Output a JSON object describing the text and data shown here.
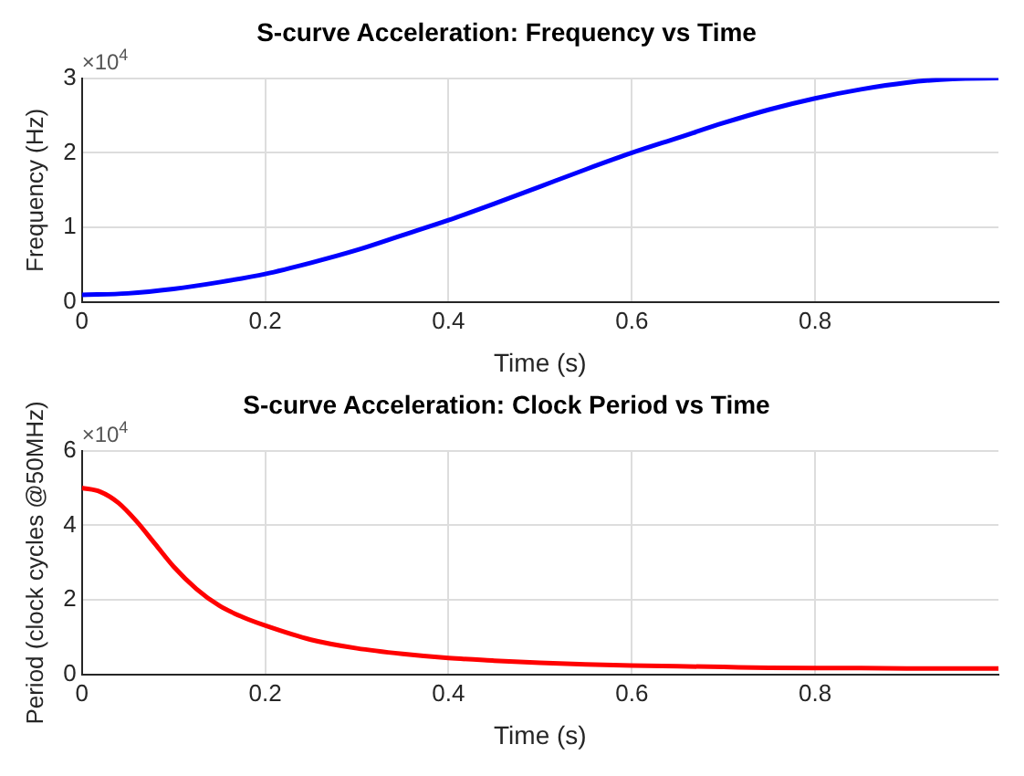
{
  "chart_data": [
    {
      "type": "line",
      "title": "S-curve Acceleration: Frequency vs Time",
      "xlabel": "Time (s)",
      "ylabel": "Frequency (Hz)",
      "annotations": [
        "×10$^{4}$"
      ],
      "x": [
        0,
        0.05,
        0.1,
        0.15,
        0.2,
        0.25,
        0.3,
        0.35,
        0.4,
        0.45,
        0.5,
        0.55,
        0.6,
        0.65,
        0.7,
        0.75,
        0.8,
        0.85,
        0.9,
        0.95,
        1
      ],
      "series": [
        {
          "color": "#0000ff",
          "values": [
            0.1,
            0.12,
            0.18,
            0.27,
            0.38,
            0.53,
            0.7,
            0.9,
            1.1,
            1.32,
            1.55,
            1.78,
            2,
            2.2,
            2.4,
            2.58,
            2.73,
            2.85,
            2.94,
            2.99,
            3
          ]
        }
      ],
      "xlim": [
        0,
        1
      ],
      "ylim": [
        0,
        3
      ],
      "xticks": [
        0,
        0.2,
        0.4,
        0.6,
        0.8
      ],
      "yticks": [
        0,
        1,
        2,
        3
      ],
      "grid": true,
      "legend": false
    },
    {
      "type": "line",
      "title": "S-curve Acceleration: Clock Period vs Time",
      "xlabel": "Time (s)",
      "ylabel": "Period (clock cycles @50MHz)",
      "annotations": [
        "×10$^{4}$"
      ],
      "x": [
        0,
        0.02,
        0.04,
        0.06,
        0.08,
        0.1,
        0.125,
        0.15,
        0.175,
        0.2,
        0.25,
        0.3,
        0.35,
        0.4,
        0.45,
        0.5,
        0.55,
        0.6,
        0.65,
        0.7,
        0.75,
        0.8,
        0.85,
        0.9,
        0.95,
        1
      ],
      "series": [
        {
          "color": "#ff0000",
          "values": [
            5,
            4.9,
            4.6,
            4.1,
            3.5,
            2.9,
            2.3,
            1.85,
            1.55,
            1.32,
            0.94,
            0.71,
            0.56,
            0.45,
            0.38,
            0.32,
            0.28,
            0.25,
            0.23,
            0.21,
            0.19,
            0.18,
            0.18,
            0.17,
            0.17,
            0.17
          ]
        }
      ],
      "xlim": [
        0,
        1
      ],
      "ylim": [
        0,
        6
      ],
      "xticks": [
        0,
        0.2,
        0.4,
        0.6,
        0.8
      ],
      "yticks": [
        0,
        2,
        4,
        6
      ],
      "grid": true,
      "legend": false
    }
  ]
}
